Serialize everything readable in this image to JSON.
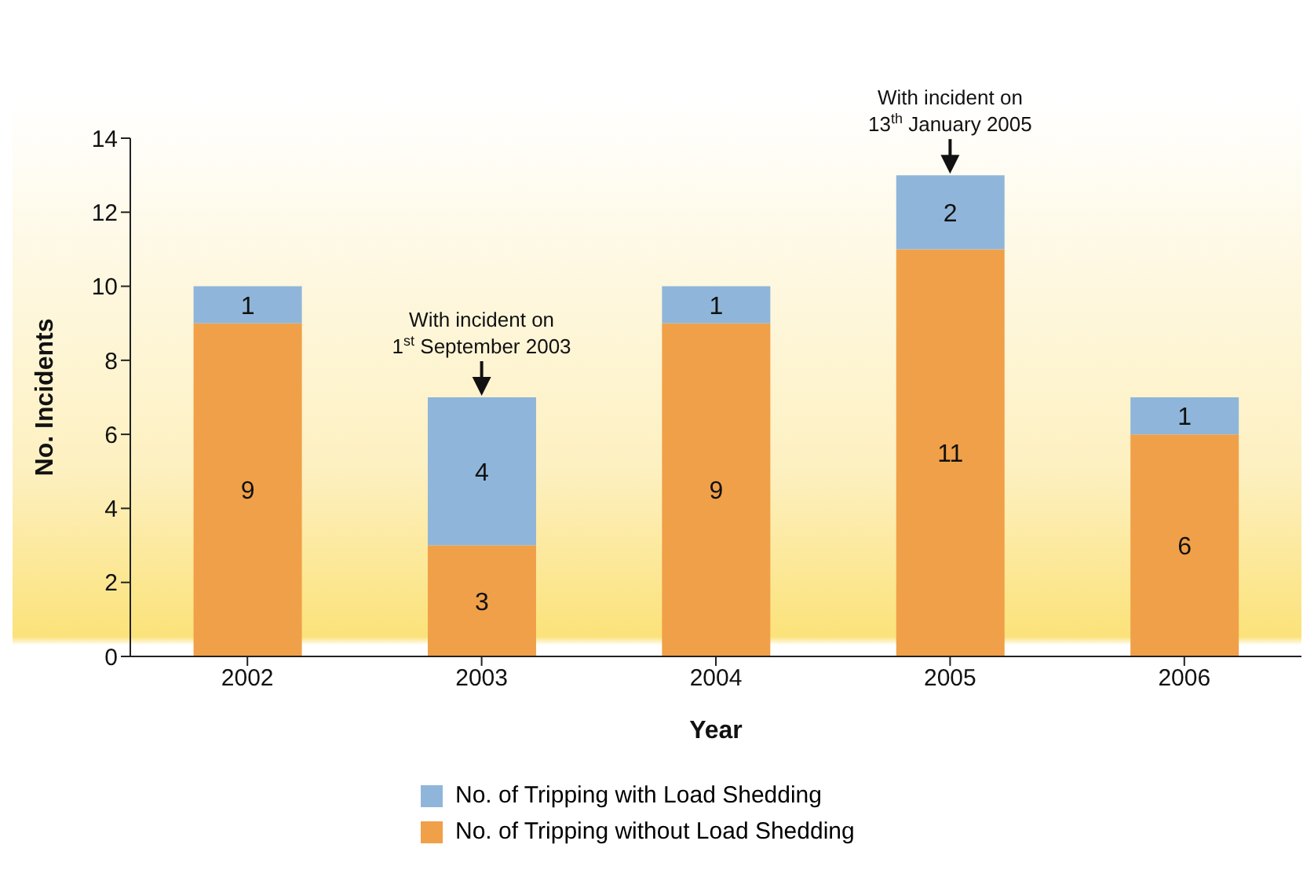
{
  "chart_data": {
    "type": "bar",
    "stacked": true,
    "xlabel": "Year",
    "ylabel": "No. Incidents",
    "categories": [
      "2002",
      "2003",
      "2004",
      "2005",
      "2006"
    ],
    "series": [
      {
        "name": "No. of Tripping without Load Shedding",
        "color": "#f0a048",
        "values": [
          9,
          3,
          9,
          11,
          6
        ]
      },
      {
        "name": "No. of Tripping with Load Shedding",
        "color": "#8fb6da",
        "values": [
          1,
          4,
          1,
          2,
          1
        ]
      }
    ],
    "ylim": [
      0,
      14
    ],
    "yticks": [
      0,
      2,
      4,
      6,
      8,
      10,
      12,
      14
    ],
    "grid": false,
    "legend": "bottom",
    "data_labels": true,
    "annotations": [
      {
        "text": "With incident on 1$^{st}$ September 2003",
        "x": "2003",
        "y": 7
      },
      {
        "text": "With incident on 13$^{th}$ January 2005",
        "x": "2005",
        "y": 13
      }
    ]
  }
}
